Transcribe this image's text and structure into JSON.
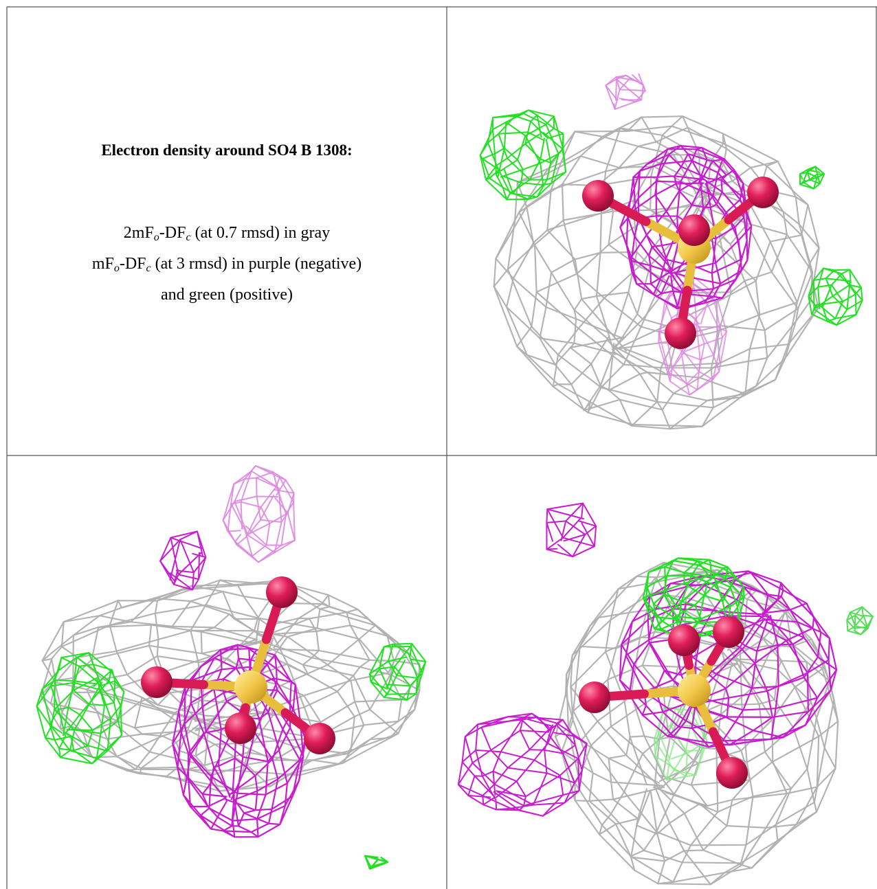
{
  "caption": {
    "title": "Electron density around SO4 B 1308:",
    "lines": [
      [
        "2mF",
        "o",
        "-DF",
        "c",
        " (at 0.7 rmsd) in gray"
      ],
      [
        "mF",
        "o",
        "-DF",
        "c",
        " (at 3 rmsd) in purple (negative)"
      ],
      [
        "and green (positive)"
      ]
    ]
  }
}
